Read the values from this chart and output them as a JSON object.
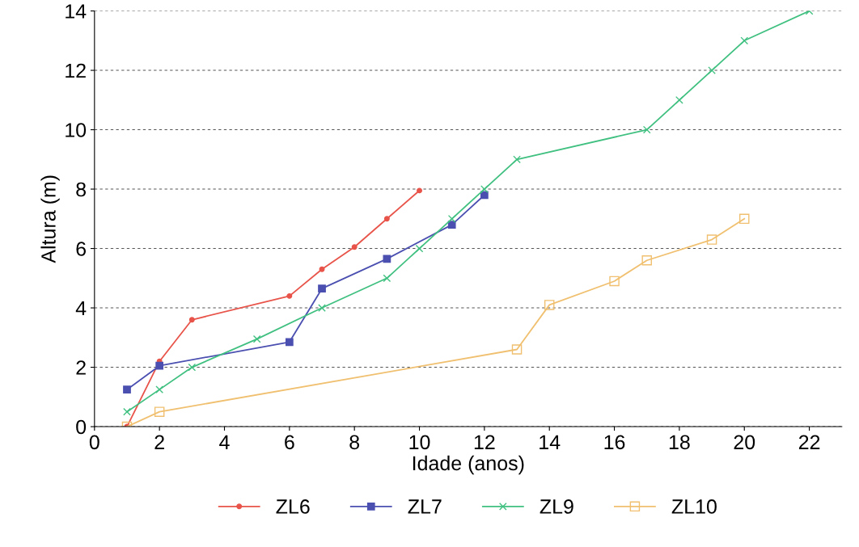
{
  "chart_data": {
    "type": "line",
    "xlabel": "Idade (anos)",
    "ylabel": "Altura (m)",
    "xlim": [
      0,
      23
    ],
    "xticks": [
      0,
      2,
      4,
      6,
      8,
      10,
      12,
      14,
      16,
      18,
      20,
      22
    ],
    "ylim": [
      0,
      14
    ],
    "yticks": [
      0,
      2,
      4,
      6,
      8,
      10,
      12,
      14
    ],
    "grid": "y",
    "legend": "bottom",
    "series": [
      {
        "name": "ZL6",
        "color": "#e8544a",
        "marker": "circle",
        "x": [
          1,
          2,
          3,
          6,
          7,
          8,
          9,
          10
        ],
        "values": [
          0.0,
          2.2,
          3.6,
          4.4,
          5.3,
          6.05,
          7.0,
          7.95
        ]
      },
      {
        "name": "ZL7",
        "color": "#4a4fb0",
        "marker": "square",
        "x": [
          1,
          2,
          6,
          7,
          9,
          11,
          12
        ],
        "values": [
          1.25,
          2.05,
          2.85,
          4.65,
          5.65,
          6.8,
          7.8
        ]
      },
      {
        "name": "ZL9",
        "color": "#40c080",
        "marker": "cross",
        "x": [
          1,
          2,
          3,
          5,
          7,
          9,
          10,
          11,
          12,
          13,
          17,
          18,
          19,
          20,
          22
        ],
        "values": [
          0.5,
          1.25,
          2.0,
          2.95,
          4.0,
          5.0,
          6.0,
          7.0,
          8.0,
          9.0,
          10.0,
          11.0,
          12.0,
          13.0,
          14.0
        ]
      },
      {
        "name": "ZL10",
        "color": "#f0c070",
        "marker": "square_open",
        "x": [
          1,
          2,
          13,
          14,
          16,
          17,
          19,
          20
        ],
        "values": [
          0.0,
          0.5,
          2.6,
          4.1,
          4.9,
          5.6,
          6.3,
          7.0
        ]
      }
    ]
  }
}
